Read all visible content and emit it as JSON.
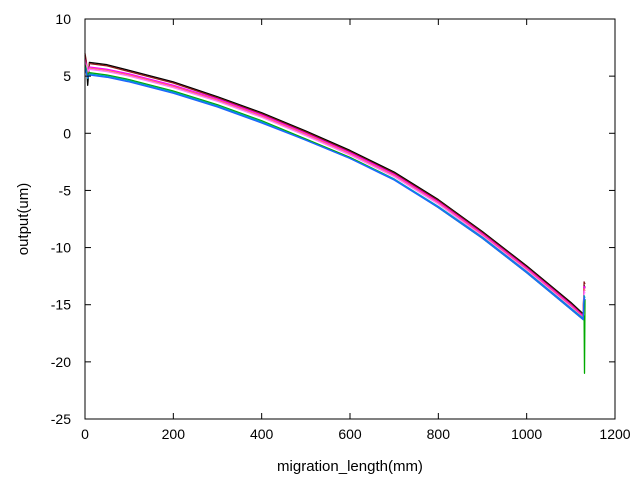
{
  "chart_data": {
    "type": "line",
    "title": "",
    "xlabel": "migration_length(mm)",
    "ylabel": "output(um)",
    "xlim": [
      0,
      1200
    ],
    "ylim": [
      -25,
      10
    ],
    "xticks": [
      0,
      200,
      400,
      600,
      800,
      1000,
      1200
    ],
    "yticks": [
      10,
      5,
      0,
      -5,
      -10,
      -15,
      -20,
      -25
    ],
    "grid": false,
    "legend": "none",
    "series": [
      {
        "color": "#000000",
        "x": [
          0,
          3,
          6,
          10,
          50,
          100,
          200,
          300,
          400,
          500,
          600,
          700,
          800,
          900,
          1000,
          1050,
          1100,
          1128,
          1130,
          1132
        ],
        "y": [
          6.8,
          6.2,
          4.2,
          6.2,
          6.0,
          5.5,
          4.5,
          3.2,
          1.8,
          0.2,
          -1.5,
          -3.4,
          -5.8,
          -8.6,
          -11.6,
          -13.2,
          -14.8,
          -15.8,
          -13.3,
          -13.5
        ]
      },
      {
        "color": "#8b1a1a",
        "x": [
          0,
          3,
          6,
          10,
          50,
          100,
          200,
          300,
          400,
          500,
          600,
          700,
          800,
          900,
          1000,
          1050,
          1100,
          1128,
          1130,
          1132
        ],
        "y": [
          7.0,
          6.3,
          5.0,
          6.1,
          5.9,
          5.4,
          4.4,
          3.1,
          1.7,
          0.1,
          -1.6,
          -3.5,
          -5.9,
          -8.7,
          -11.7,
          -13.3,
          -14.9,
          -15.9,
          -13.0,
          -13.2
        ]
      },
      {
        "color": "#ff00ff",
        "x": [
          0,
          3,
          6,
          10,
          50,
          100,
          200,
          300,
          400,
          500,
          600,
          700,
          800,
          900,
          1000,
          1050,
          1100,
          1128,
          1130,
          1132
        ],
        "y": [
          6.5,
          6.0,
          5.5,
          5.8,
          5.6,
          5.2,
          4.2,
          3.0,
          1.6,
          0.0,
          -1.7,
          -3.6,
          -6.0,
          -8.8,
          -11.8,
          -13.4,
          -15.0,
          -16.0,
          -13.4,
          -13.6
        ]
      },
      {
        "color": "#ff6a6a",
        "x": [
          0,
          3,
          6,
          10,
          50,
          100,
          200,
          300,
          400,
          500,
          600,
          700,
          800,
          900,
          1000,
          1050,
          1100,
          1128,
          1130,
          1132
        ],
        "y": [
          6.4,
          5.9,
          5.3,
          5.7,
          5.5,
          5.1,
          4.1,
          2.9,
          1.5,
          -0.1,
          -1.8,
          -3.7,
          -6.1,
          -8.9,
          -11.9,
          -13.5,
          -15.1,
          -16.1,
          -13.6,
          -13.8
        ]
      },
      {
        "color": "#ff77ff",
        "x": [
          0,
          3,
          6,
          10,
          50,
          100,
          200,
          300,
          400,
          500,
          600,
          700,
          800,
          900,
          1000,
          1050,
          1100,
          1128,
          1130,
          1132
        ],
        "y": [
          6.3,
          5.8,
          5.4,
          5.6,
          5.4,
          5.0,
          4.0,
          2.8,
          1.4,
          -0.2,
          -1.9,
          -3.8,
          -6.2,
          -9.0,
          -12.0,
          -13.6,
          -15.2,
          -16.2,
          -13.8,
          -14.0
        ]
      },
      {
        "color": "#00aa00",
        "x": [
          0,
          3,
          6,
          10,
          50,
          100,
          200,
          300,
          400,
          500,
          600,
          700,
          800,
          900,
          1000,
          1050,
          1100,
          1128,
          1130,
          1131,
          1132
        ],
        "y": [
          6.0,
          5.6,
          5.0,
          5.3,
          5.1,
          4.7,
          3.7,
          2.5,
          1.1,
          -0.5,
          -2.1,
          -4.0,
          -6.5,
          -9.2,
          -12.2,
          -13.8,
          -15.4,
          -16.3,
          -16.0,
          -21.0,
          -14.5
        ]
      },
      {
        "color": "#00a0c0",
        "x": [
          0,
          3,
          6,
          10,
          50,
          100,
          200,
          300,
          400,
          500,
          600,
          700,
          800,
          900,
          1000,
          1050,
          1100,
          1128,
          1130,
          1132
        ],
        "y": [
          5.8,
          5.4,
          4.8,
          5.2,
          5.0,
          4.6,
          3.6,
          2.4,
          1.0,
          -0.6,
          -2.2,
          -4.0,
          -6.4,
          -9.1,
          -12.1,
          -13.7,
          -15.3,
          -16.2,
          -14.2,
          -14.4
        ]
      },
      {
        "color": "#1e64ff",
        "x": [
          0,
          3,
          6,
          10,
          50,
          100,
          200,
          300,
          400,
          500,
          600,
          700,
          800,
          900,
          1000,
          1050,
          1100,
          1128,
          1130,
          1132
        ],
        "y": [
          5.6,
          5.3,
          4.9,
          5.1,
          4.9,
          4.5,
          3.5,
          2.3,
          0.9,
          -0.6,
          -2.2,
          -4.1,
          -6.5,
          -9.2,
          -12.2,
          -13.8,
          -15.4,
          -16.3,
          -14.4,
          -14.6
        ]
      }
    ]
  }
}
